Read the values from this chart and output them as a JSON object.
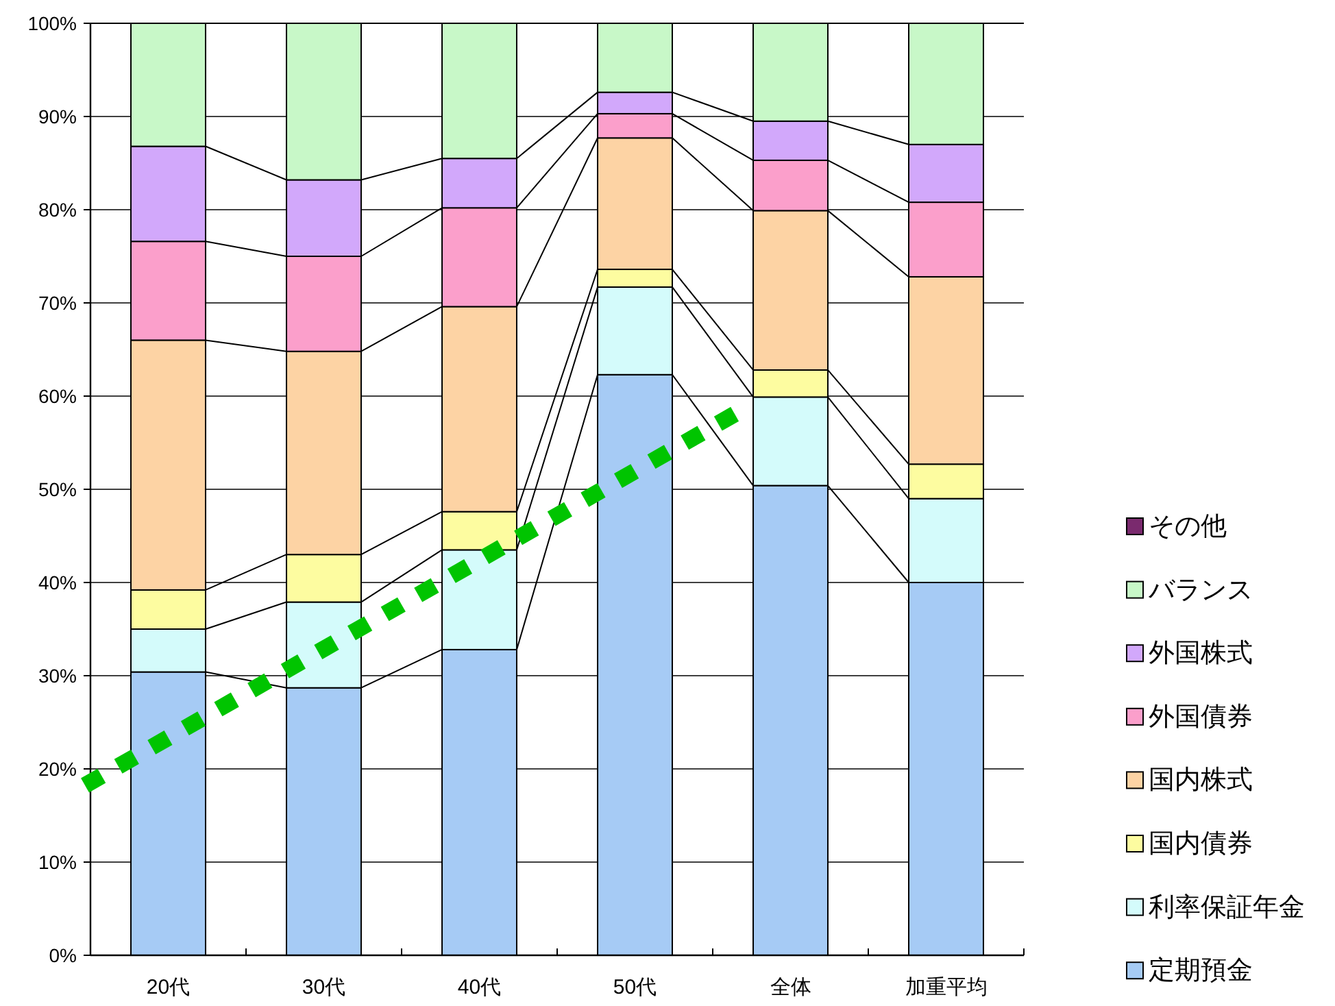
{
  "chart_data": {
    "type": "bar",
    "stacked": true,
    "categories": [
      "20代",
      "30代",
      "40代",
      "50代",
      "全体",
      "加重平均"
    ],
    "series": [
      {
        "name": "定期預金",
        "color": "#a6cbf5",
        "values": [
          30.4,
          28.7,
          32.8,
          62.3,
          50.4,
          40.0
        ]
      },
      {
        "name": "利率保証年金",
        "color": "#d4fbfb",
        "values": [
          4.6,
          9.2,
          10.7,
          9.4,
          9.5,
          9.0
        ]
      },
      {
        "name": "国内債券",
        "color": "#fdfca0",
        "values": [
          4.2,
          5.1,
          4.1,
          1.9,
          2.9,
          3.7
        ]
      },
      {
        "name": "国内株式",
        "color": "#fdd3a4",
        "values": [
          26.8,
          21.8,
          22.0,
          14.1,
          17.1,
          20.1
        ]
      },
      {
        "name": "外国債券",
        "color": "#fb9fcb",
        "values": [
          10.6,
          10.2,
          10.6,
          2.6,
          5.4,
          8.0
        ]
      },
      {
        "name": "外国株式",
        "color": "#d2a8fb",
        "values": [
          10.2,
          8.2,
          5.3,
          2.3,
          4.2,
          6.2
        ]
      },
      {
        "name": "バランス",
        "color": "#c8f8c8",
        "values": [
          13.2,
          16.8,
          14.5,
          7.4,
          10.5,
          13.0
        ]
      },
      {
        "name": "その他",
        "color": "#7a2a6e",
        "values": [
          0,
          0,
          0,
          0,
          0,
          0
        ]
      }
    ],
    "ylim": [
      0,
      100
    ],
    "yticks": [
      {
        "value": 0,
        "label": "0%"
      },
      {
        "value": 10,
        "label": "10%"
      },
      {
        "value": 20,
        "label": "20%"
      },
      {
        "value": 30,
        "label": "30%"
      },
      {
        "value": 40,
        "label": "40%"
      },
      {
        "value": 50,
        "label": "50%"
      },
      {
        "value": 60,
        "label": "60%"
      },
      {
        "value": 70,
        "label": "70%"
      },
      {
        "value": 80,
        "label": "80%"
      },
      {
        "value": 90,
        "label": "90%"
      },
      {
        "value": 100,
        "label": "100%"
      }
    ],
    "grid": "y",
    "legend": "right"
  }
}
